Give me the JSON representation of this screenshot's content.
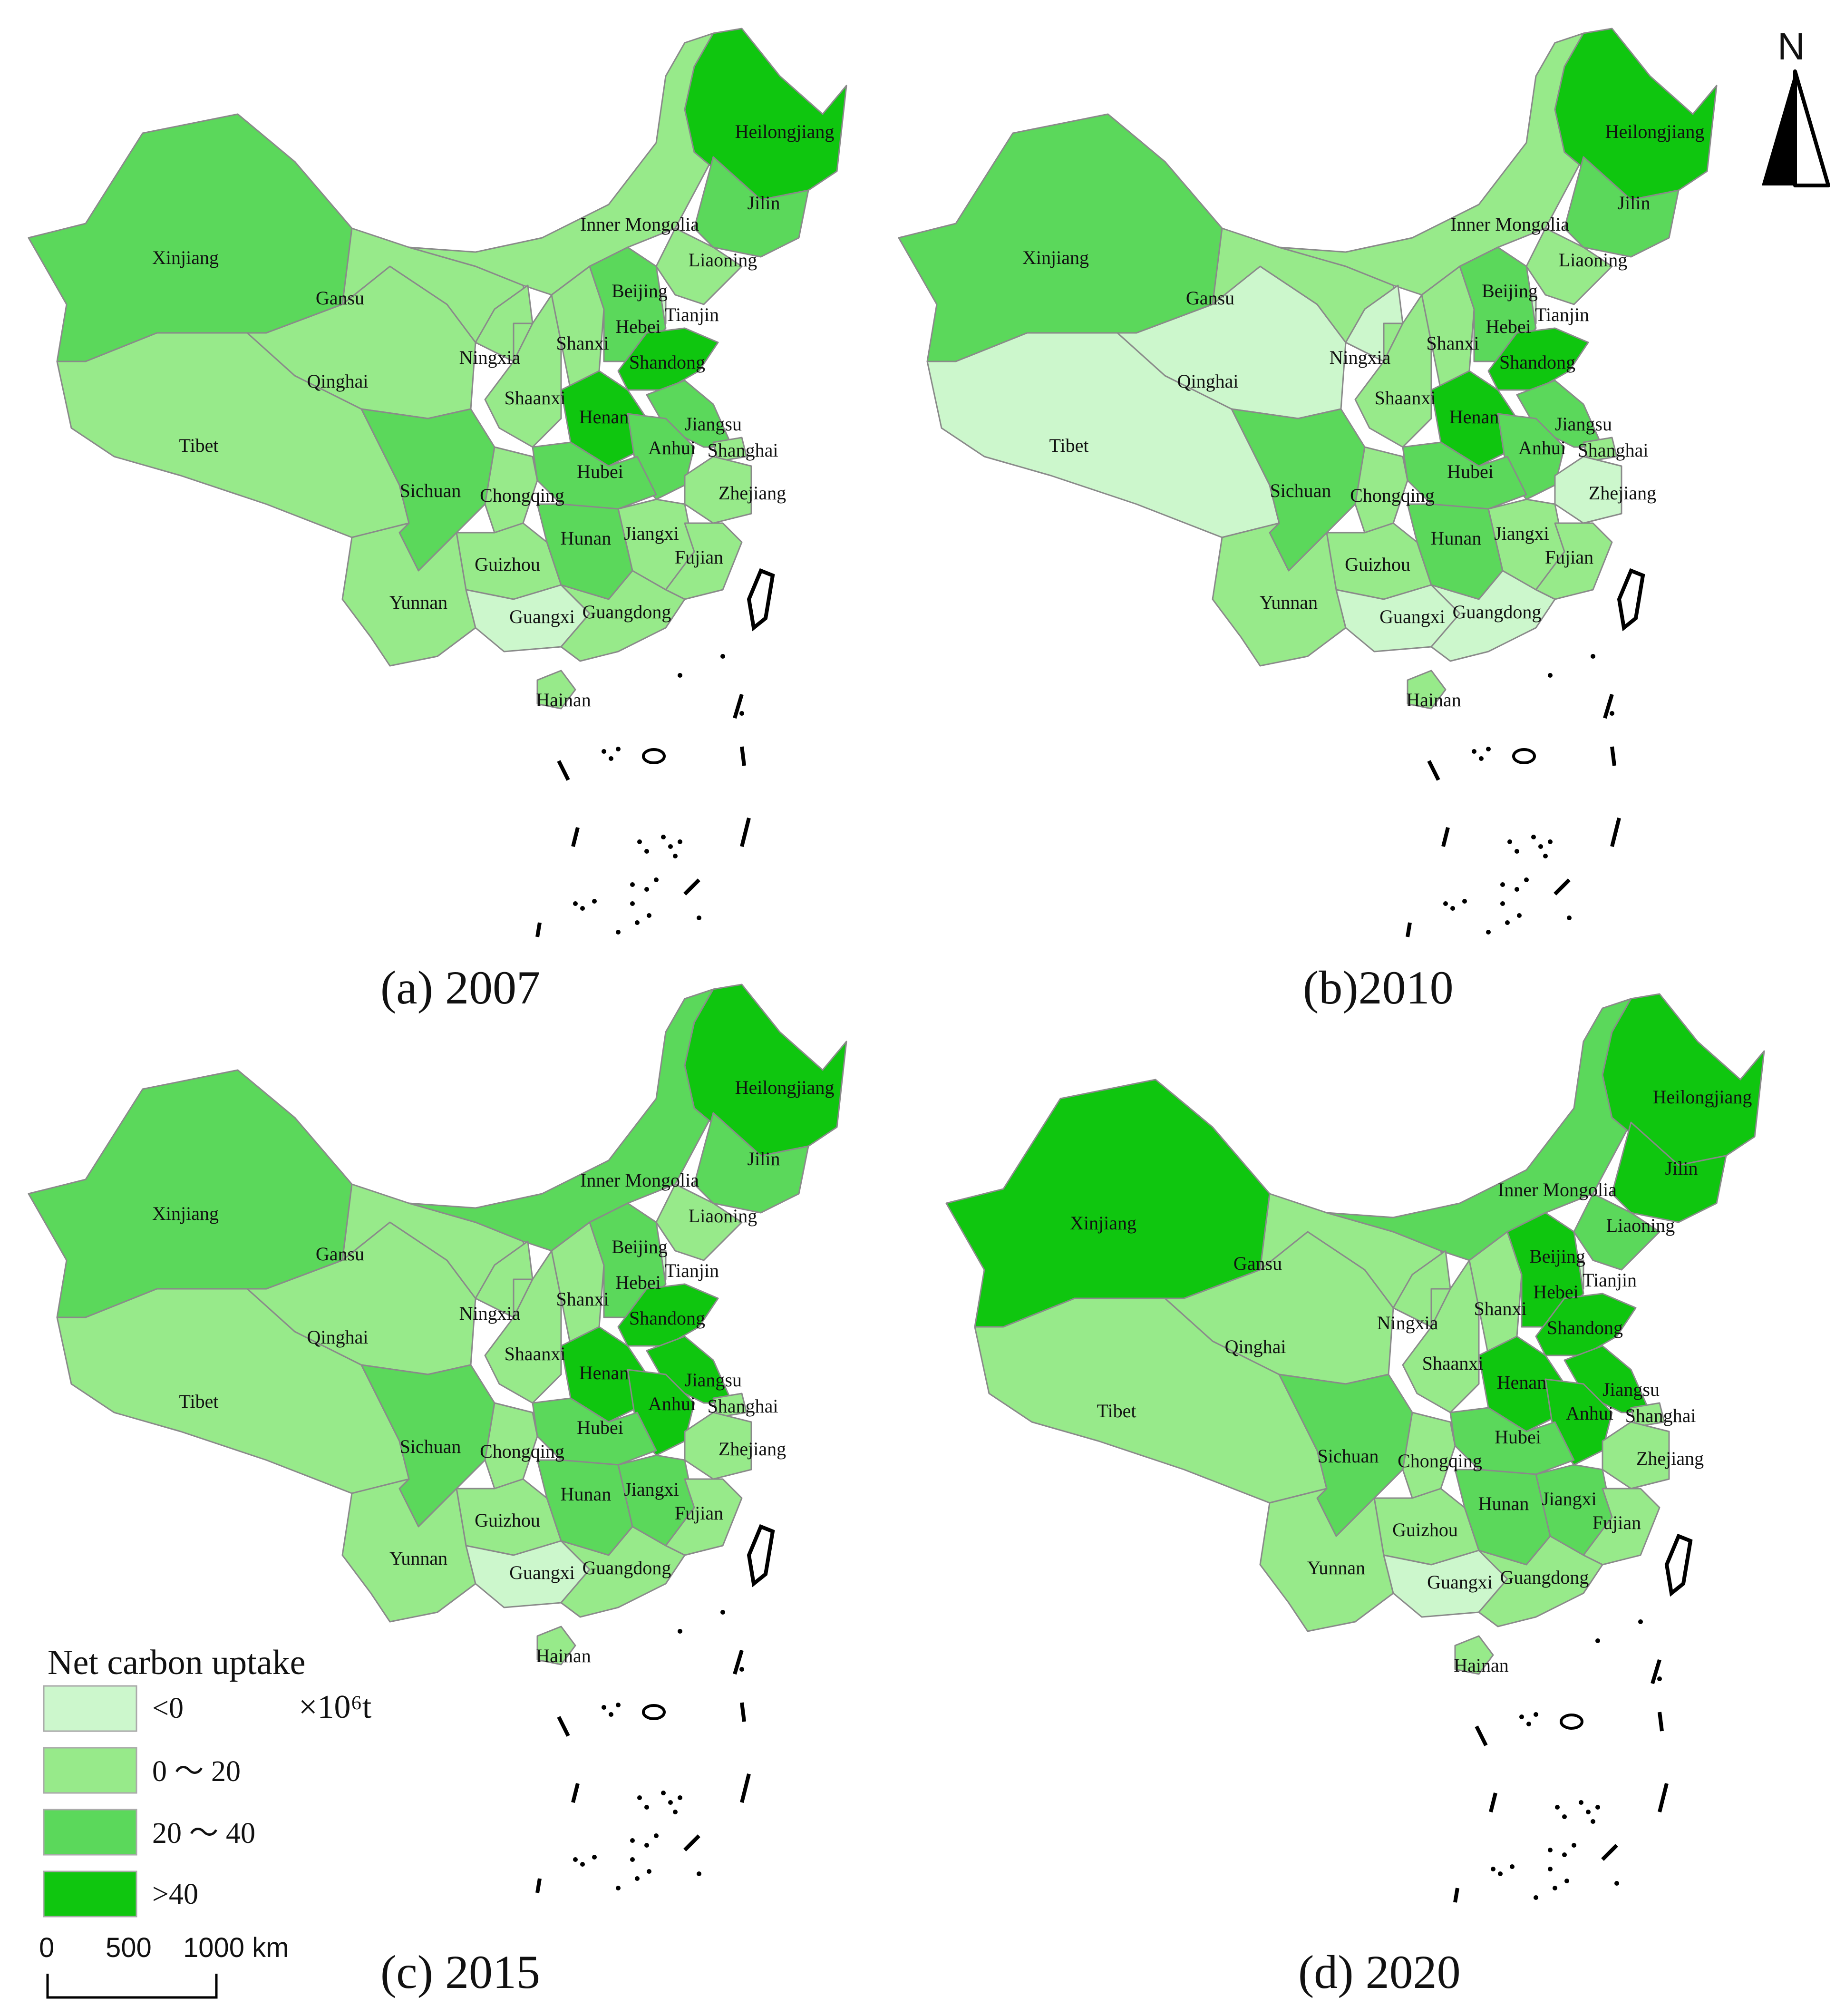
{
  "legend": {
    "title": "Net carbon uptake",
    "unit": "×10⁶t",
    "classes": [
      {
        "label": "<0",
        "color": "#ccf7cc"
      },
      {
        "label": "0 ～ 20",
        "color": "#97ea8a"
      },
      {
        "label": "20 ～ 40",
        "color": "#5bd85b"
      },
      {
        "label": ">40",
        "color": "#0fc60f"
      }
    ]
  },
  "scale_bar": {
    "ticks": [
      "0",
      "500",
      "1000 km"
    ]
  },
  "north_arrow": {
    "label": "N",
    "icon": "north-arrow-icon"
  },
  "province_labels": [
    "Heilongjiang",
    "Jilin",
    "Inner Mongolia",
    "Liaoning",
    "Xinjiang",
    "Gansu",
    "Beijing",
    "Tianjin",
    "Hebei",
    "Shanxi",
    "Ningxia",
    "Qinghai",
    "Shandong",
    "Shaanxi",
    "Henan",
    "Jiangsu",
    "Tibet",
    "Anhui",
    "Shanghai",
    "Hubei",
    "Sichuan",
    "Chongqing",
    "Zhejiang",
    "Jiangxi",
    "Hunan",
    "Fujian",
    "Guizhou",
    "Yunnan",
    "Guangxi",
    "Guangdong",
    "Hainan"
  ],
  "panels": [
    {
      "caption": "(a) 2007",
      "classes": {
        "Heilongjiang": 3,
        "Jilin": 2,
        "Inner Mongolia": 1,
        "Liaoning": 1,
        "Xinjiang": 2,
        "Gansu": 1,
        "Beijing": 2,
        "Tianjin": 0,
        "Hebei": 2,
        "Shanxi": 1,
        "Ningxia": 1,
        "Qinghai": 1,
        "Shandong": 3,
        "Shaanxi": 1,
        "Henan": 3,
        "Jiangsu": 2,
        "Tibet": 1,
        "Anhui": 2,
        "Shanghai": 1,
        "Hubei": 2,
        "Sichuan": 2,
        "Chongqing": 1,
        "Zhejiang": 1,
        "Jiangxi": 1,
        "Hunan": 2,
        "Fujian": 1,
        "Guizhou": 1,
        "Yunnan": 1,
        "Guangxi": 0,
        "Guangdong": 1,
        "Hainan": 1
      }
    },
    {
      "caption": "(b)2010",
      "classes": {
        "Heilongjiang": 3,
        "Jilin": 2,
        "Inner Mongolia": 1,
        "Liaoning": 1,
        "Xinjiang": 2,
        "Gansu": 1,
        "Beijing": 2,
        "Tianjin": 0,
        "Hebei": 2,
        "Shanxi": 1,
        "Ningxia": 0,
        "Qinghai": 0,
        "Shandong": 3,
        "Shaanxi": 1,
        "Henan": 3,
        "Jiangsu": 2,
        "Tibet": 0,
        "Anhui": 2,
        "Shanghai": 1,
        "Hubei": 2,
        "Sichuan": 2,
        "Chongqing": 1,
        "Zhejiang": 0,
        "Jiangxi": 1,
        "Hunan": 2,
        "Fujian": 1,
        "Guizhou": 1,
        "Yunnan": 1,
        "Guangxi": 0,
        "Guangdong": 0,
        "Hainan": 1
      }
    },
    {
      "caption": "(c) 2015",
      "classes": {
        "Heilongjiang": 3,
        "Jilin": 2,
        "Inner Mongolia": 2,
        "Liaoning": 1,
        "Xinjiang": 2,
        "Gansu": 1,
        "Beijing": 1,
        "Tianjin": 0,
        "Hebei": 2,
        "Shanxi": 1,
        "Ningxia": 1,
        "Qinghai": 1,
        "Shandong": 3,
        "Shaanxi": 1,
        "Henan": 3,
        "Jiangsu": 3,
        "Tibet": 1,
        "Anhui": 3,
        "Shanghai": 1,
        "Hubei": 2,
        "Sichuan": 2,
        "Chongqing": 1,
        "Zhejiang": 1,
        "Jiangxi": 2,
        "Hunan": 2,
        "Fujian": 1,
        "Guizhou": 1,
        "Yunnan": 1,
        "Guangxi": 0,
        "Guangdong": 1,
        "Hainan": 1
      }
    },
    {
      "caption": "(d) 2020",
      "classes": {
        "Heilongjiang": 3,
        "Jilin": 3,
        "Inner Mongolia": 2,
        "Liaoning": 2,
        "Xinjiang": 3,
        "Gansu": 1,
        "Beijing": 3,
        "Tianjin": 0,
        "Hebei": 3,
        "Shanxi": 1,
        "Ningxia": 1,
        "Qinghai": 1,
        "Shandong": 3,
        "Shaanxi": 1,
        "Henan": 3,
        "Jiangsu": 3,
        "Tibet": 1,
        "Anhui": 3,
        "Shanghai": 1,
        "Hubei": 2,
        "Sichuan": 2,
        "Chongqing": 1,
        "Zhejiang": 1,
        "Jiangxi": 2,
        "Hunan": 2,
        "Fujian": 1,
        "Guizhou": 1,
        "Yunnan": 1,
        "Guangxi": 0,
        "Guangdong": 1,
        "Hainan": 1
      }
    }
  ]
}
